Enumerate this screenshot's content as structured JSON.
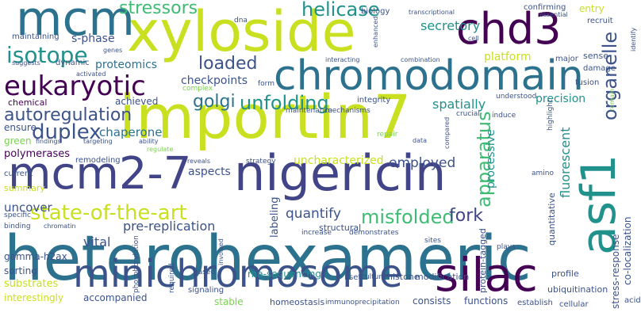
{
  "words": {
    "heterohexameric": "heterohexameric",
    "importin7": "importin7",
    "xyloside": "xyloside",
    "nigericin": "nigericin",
    "mcm2_7": "mcm2-7",
    "minichromosome": "minichromosome",
    "chromodomain": "chromodomain",
    "chd3": "chd3",
    "asf1": "asf1",
    "silac": "silac",
    "mcm": "mcm",
    "eukaryotic": "eukaryotic",
    "isotope": "isotope",
    "duplex": "duplex",
    "autoregulation": "autoregulation",
    "state_of_the_art": "state-of-the-art",
    "golgi": "golgi",
    "unfolding": "unfolding",
    "misfolded": "misfolded",
    "fork": "fork",
    "stressors": "stressors",
    "helicase": "helicase",
    "loaded": "loaded",
    "apparatus": "apparatus",
    "organelle": "organelle",
    "uncharacterized": "uncharacterized",
    "pre_replication": "pre-replication",
    "quantify": "quantify",
    "employed": "employed",
    "platform": "platform",
    "chaperone": "chaperone",
    "spatially": "spatially",
    "secretory": "secretory",
    "proteomics": "proteomics",
    "s_phase": "s-phase",
    "precision": "precision",
    "fluorescent": "fluorescent",
    "vital": "vital",
    "uncover": "uncover",
    "processive": "processive",
    "checkpoints": "checkpoints",
    "polymerases": "polymerases",
    "gamma_h2ax": "gamma-h2ax",
    "sorting": "sorting",
    "substrates": "substrates",
    "aspects": "aspects",
    "labeling": "labeling",
    "structural": "structural",
    "histone": "histone",
    "co_localization": "co-localization",
    "stress_response": "stress-response",
    "achieved": "achieved",
    "chemical": "chemical",
    "ensure": "ensure",
    "green": "green",
    "current": "current",
    "summary": "summary",
    "remodeling": "remodeling",
    "quantitative": "quantitative",
    "integrity": "integrity",
    "entry": "entry",
    "sense": "sense",
    "recruit": "recruit",
    "damage": "damage",
    "fusion": "fusion",
    "confirming": "confirming",
    "essential": "essential",
    "biology": "biology",
    "transcriptional": "transcriptional",
    "dna": "dna",
    "maintaining": "maintaining",
    "genes": "genes",
    "suggests": "suggests",
    "dynamic": "dynamic",
    "activated": "activated",
    "enhanced": "enhanced",
    "cell": "cell",
    "identify": "identify",
    "interacting": "interacting",
    "combination": "combination",
    "major": "major",
    "form": "form",
    "complex": "complex",
    "maintenance": "maintenance",
    "mechanisms": "mechanisms",
    "understood": "understood",
    "crucial": "crucial",
    "induce": "induce",
    "highlight": "highlight",
    "remain": "remain",
    "targeting": "targeting",
    "ability": "ability",
    "regulate": "regulate",
    "findings": "findings",
    "repair": "repair",
    "data": "data",
    "compared": "compared",
    "amino": "amino",
    "strategy": "strategy",
    "reveals": "reveals",
    "binding": "binding",
    "specific": "specific",
    "chromatin": "chromatin",
    "phosphorylation": "phosphorylation",
    "involved": "involved",
    "increase": "increase",
    "demonstrates": "demonstrates",
    "sites": "sites",
    "plays": "plays",
    "profile": "profile",
    "rna_sequencing": "rna-sequencing",
    "modification": "modification",
    "protein_tagged": "protein-tagged",
    "ubiquitination": "ubiquitination",
    "signaling": "signaling",
    "set": "set",
    "culture": "culture",
    "required": "required",
    "based": "based",
    "interestingly": "interestingly",
    "accompanied": "accompanied",
    "stable": "stable",
    "homeostasis": "homeostasis",
    "immunoprecipitation": "immunoprecipitation",
    "consists": "consists",
    "functions": "functions",
    "establish": "establish",
    "cellular": "cellular",
    "acids": "acids"
  }
}
